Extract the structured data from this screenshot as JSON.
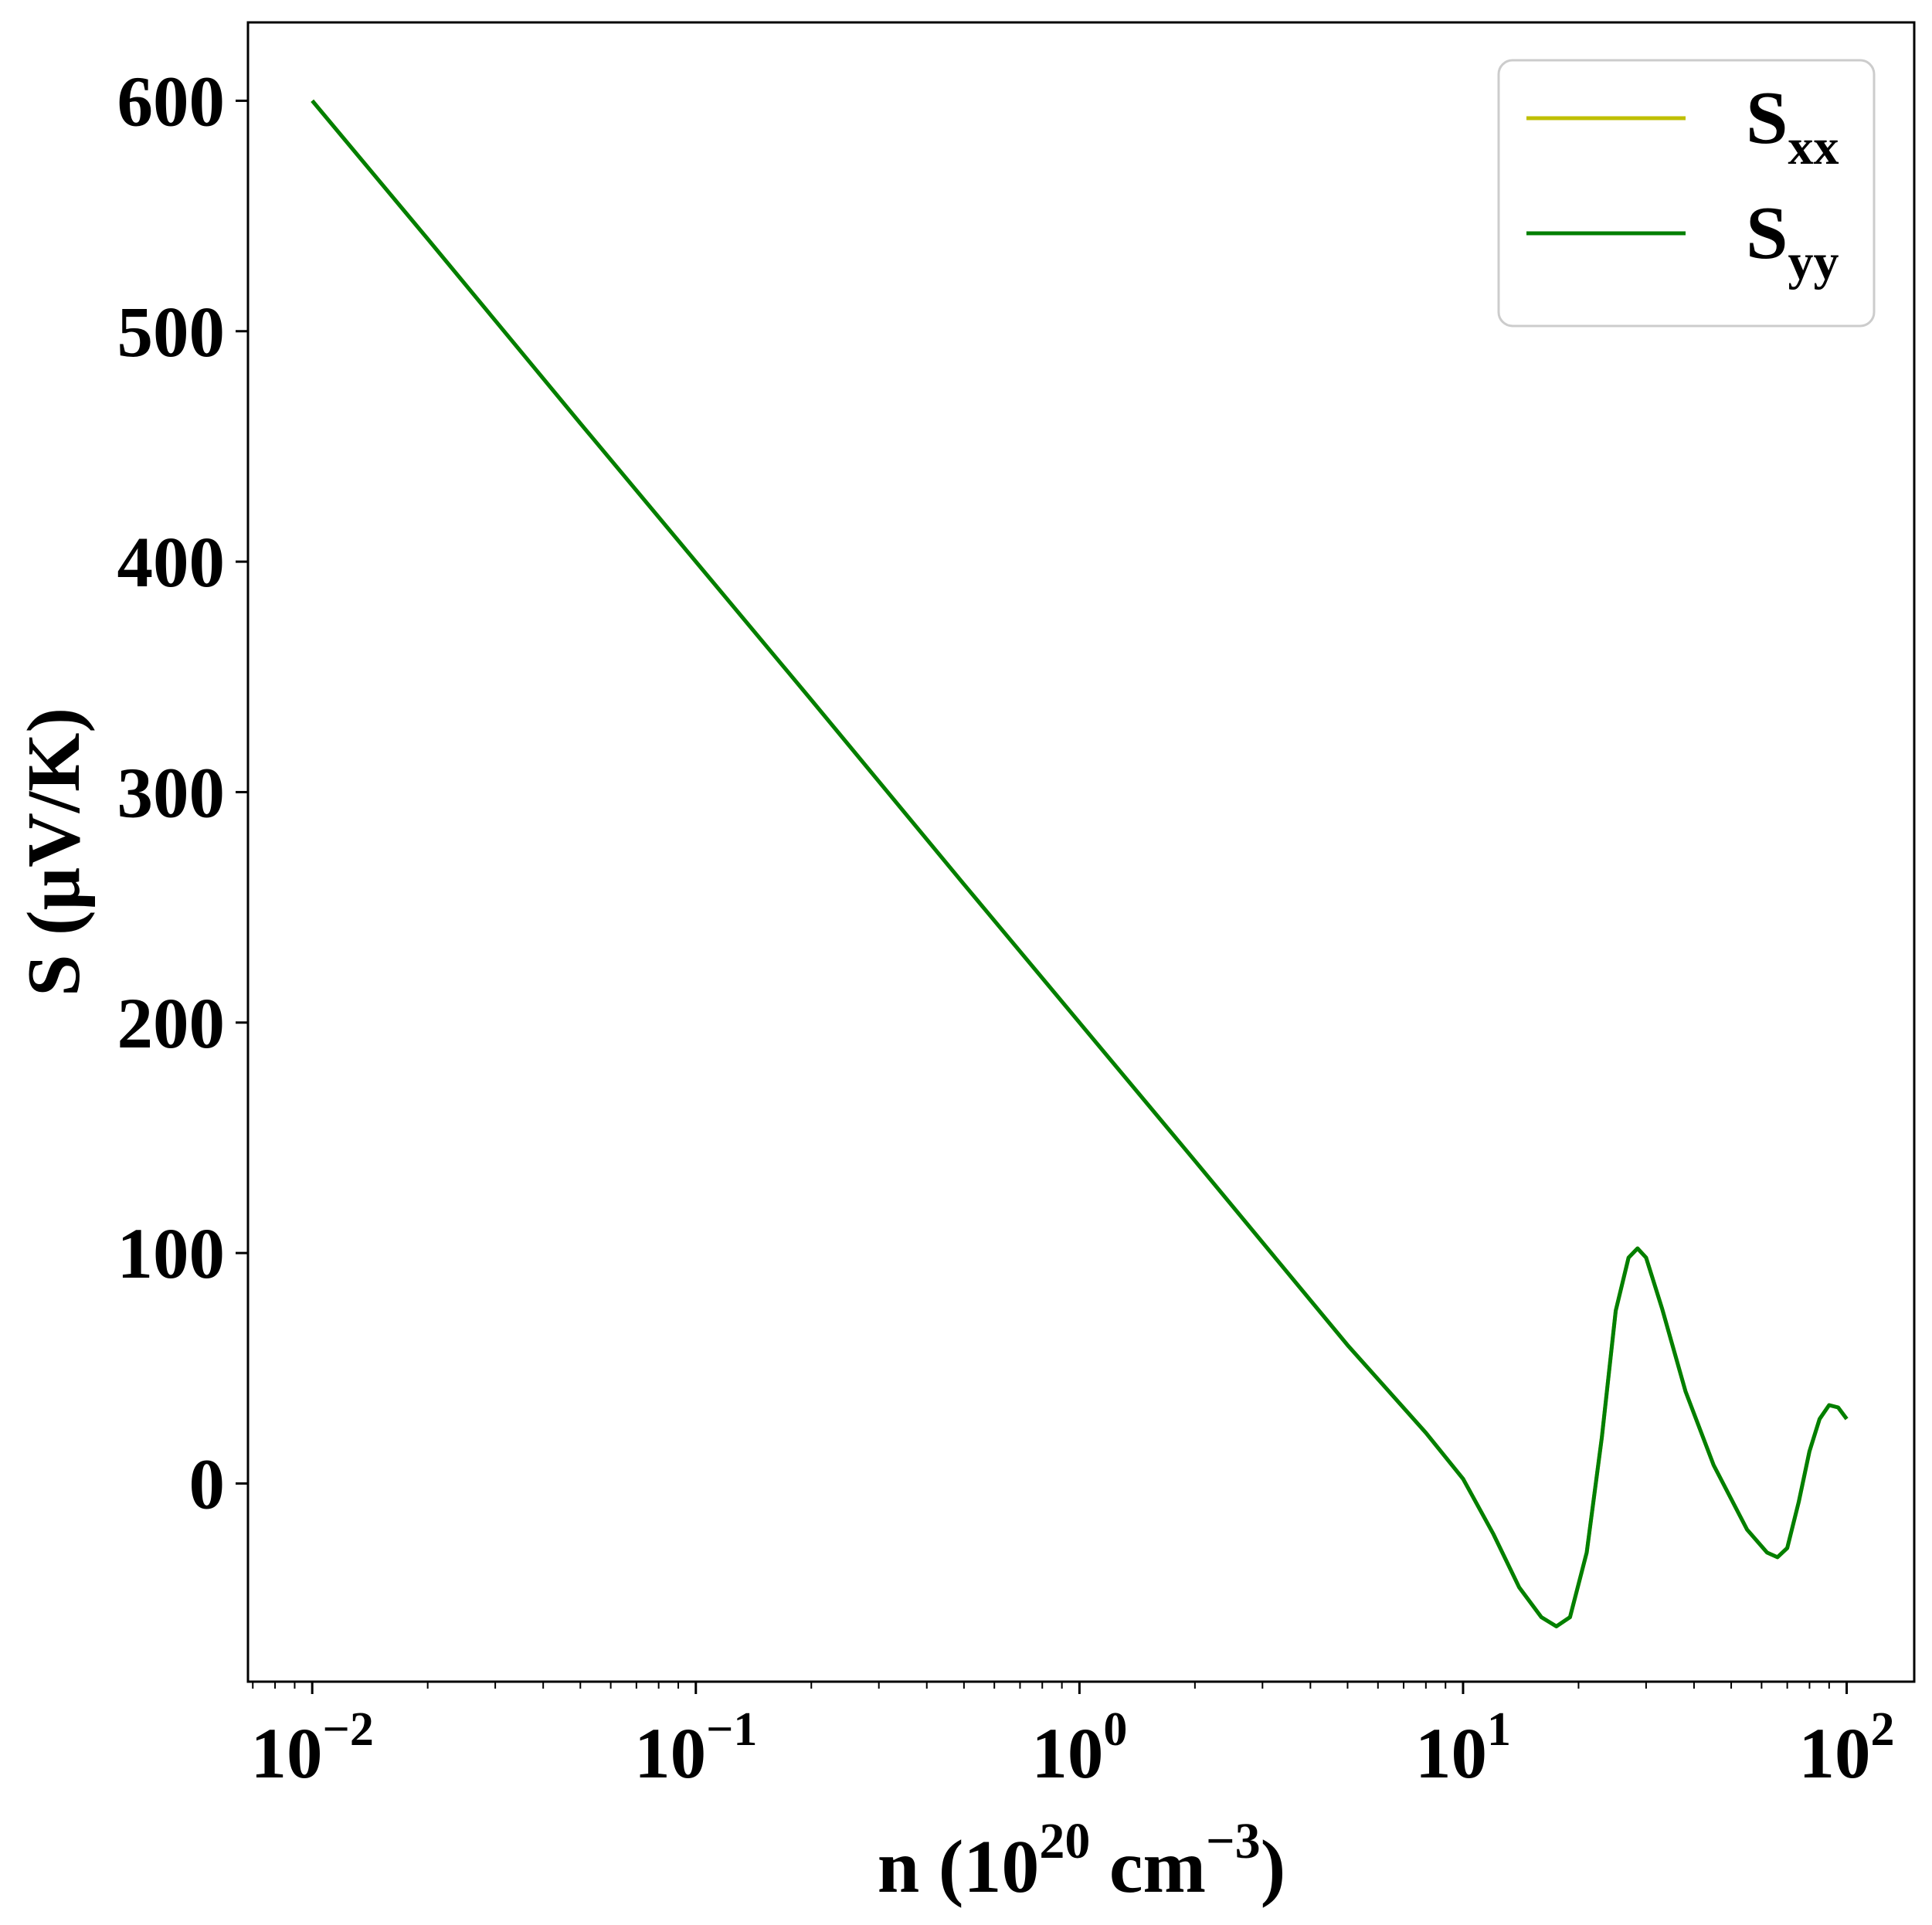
{
  "chart_data": {
    "type": "line",
    "title": "",
    "xscale": "log",
    "xlim": [
      0.0068,
      150
    ],
    "ylim": [
      -86,
      634
    ],
    "grid": false,
    "legend_position": "top-right",
    "x_ticks": [
      {
        "value": 0.01,
        "base": "10",
        "exp": "−2"
      },
      {
        "value": 0.1,
        "base": "10",
        "exp": "−1"
      },
      {
        "value": 1,
        "base": "10",
        "exp": "0"
      },
      {
        "value": 10,
        "base": "10",
        "exp": "1"
      },
      {
        "value": 100,
        "base": "10",
        "exp": "2"
      }
    ],
    "y_ticks": [
      {
        "value": 0,
        "label": "0"
      },
      {
        "value": 100,
        "label": "100"
      },
      {
        "value": 200,
        "label": "200"
      },
      {
        "value": 300,
        "label": "300"
      },
      {
        "value": 400,
        "label": "400"
      },
      {
        "value": 500,
        "label": "500"
      },
      {
        "value": 600,
        "label": "600"
      }
    ],
    "xlabel": {
      "prefix": "n (10",
      "sup1": "20",
      "mid": " cm",
      "sup2": "−3",
      "suffix": ")"
    },
    "ylabel": "S (μV/K)",
    "series": [
      {
        "name_main": "S",
        "name_sub": "xx",
        "color": "#bfbf00",
        "points": [
          [
            0.01,
            600
          ],
          [
            0.02,
            540
          ],
          [
            0.05,
            460
          ],
          [
            0.1,
            400
          ],
          [
            0.2,
            340
          ],
          [
            0.5,
            260
          ],
          [
            1,
            200
          ],
          [
            2,
            140
          ],
          [
            5,
            60
          ],
          [
            8,
            22
          ],
          [
            10,
            2
          ],
          [
            12,
            -22
          ],
          [
            14,
            -45
          ],
          [
            16,
            -58
          ],
          [
            17.5,
            -62
          ],
          [
            19,
            -58
          ],
          [
            21,
            -30
          ],
          [
            23,
            20
          ],
          [
            25,
            75
          ],
          [
            27,
            98
          ],
          [
            28.5,
            102
          ],
          [
            30,
            98
          ],
          [
            33,
            76
          ],
          [
            38,
            40
          ],
          [
            45,
            8
          ],
          [
            55,
            -20
          ],
          [
            62,
            -30
          ],
          [
            66,
            -32
          ],
          [
            70,
            -28
          ],
          [
            75,
            -8
          ],
          [
            80,
            14
          ],
          [
            85,
            28
          ],
          [
            90,
            34
          ],
          [
            95,
            33
          ],
          [
            100,
            28
          ]
        ]
      },
      {
        "name_main": "S",
        "name_sub": "yy",
        "color": "#007f00",
        "points": [
          [
            0.01,
            600
          ],
          [
            0.02,
            540
          ],
          [
            0.05,
            460
          ],
          [
            0.1,
            400
          ],
          [
            0.2,
            340
          ],
          [
            0.5,
            260
          ],
          [
            1,
            200
          ],
          [
            2,
            140
          ],
          [
            5,
            60
          ],
          [
            8,
            22
          ],
          [
            10,
            2
          ],
          [
            12,
            -22
          ],
          [
            14,
            -45
          ],
          [
            16,
            -58
          ],
          [
            17.5,
            -62
          ],
          [
            19,
            -58
          ],
          [
            21,
            -30
          ],
          [
            23,
            20
          ],
          [
            25,
            75
          ],
          [
            27,
            98
          ],
          [
            28.5,
            102
          ],
          [
            30,
            98
          ],
          [
            33,
            76
          ],
          [
            38,
            40
          ],
          [
            45,
            8
          ],
          [
            55,
            -20
          ],
          [
            62,
            -30
          ],
          [
            66,
            -32
          ],
          [
            70,
            -28
          ],
          [
            75,
            -8
          ],
          [
            80,
            14
          ],
          [
            85,
            28
          ],
          [
            90,
            34
          ],
          [
            95,
            33
          ],
          [
            100,
            28
          ]
        ]
      }
    ]
  }
}
